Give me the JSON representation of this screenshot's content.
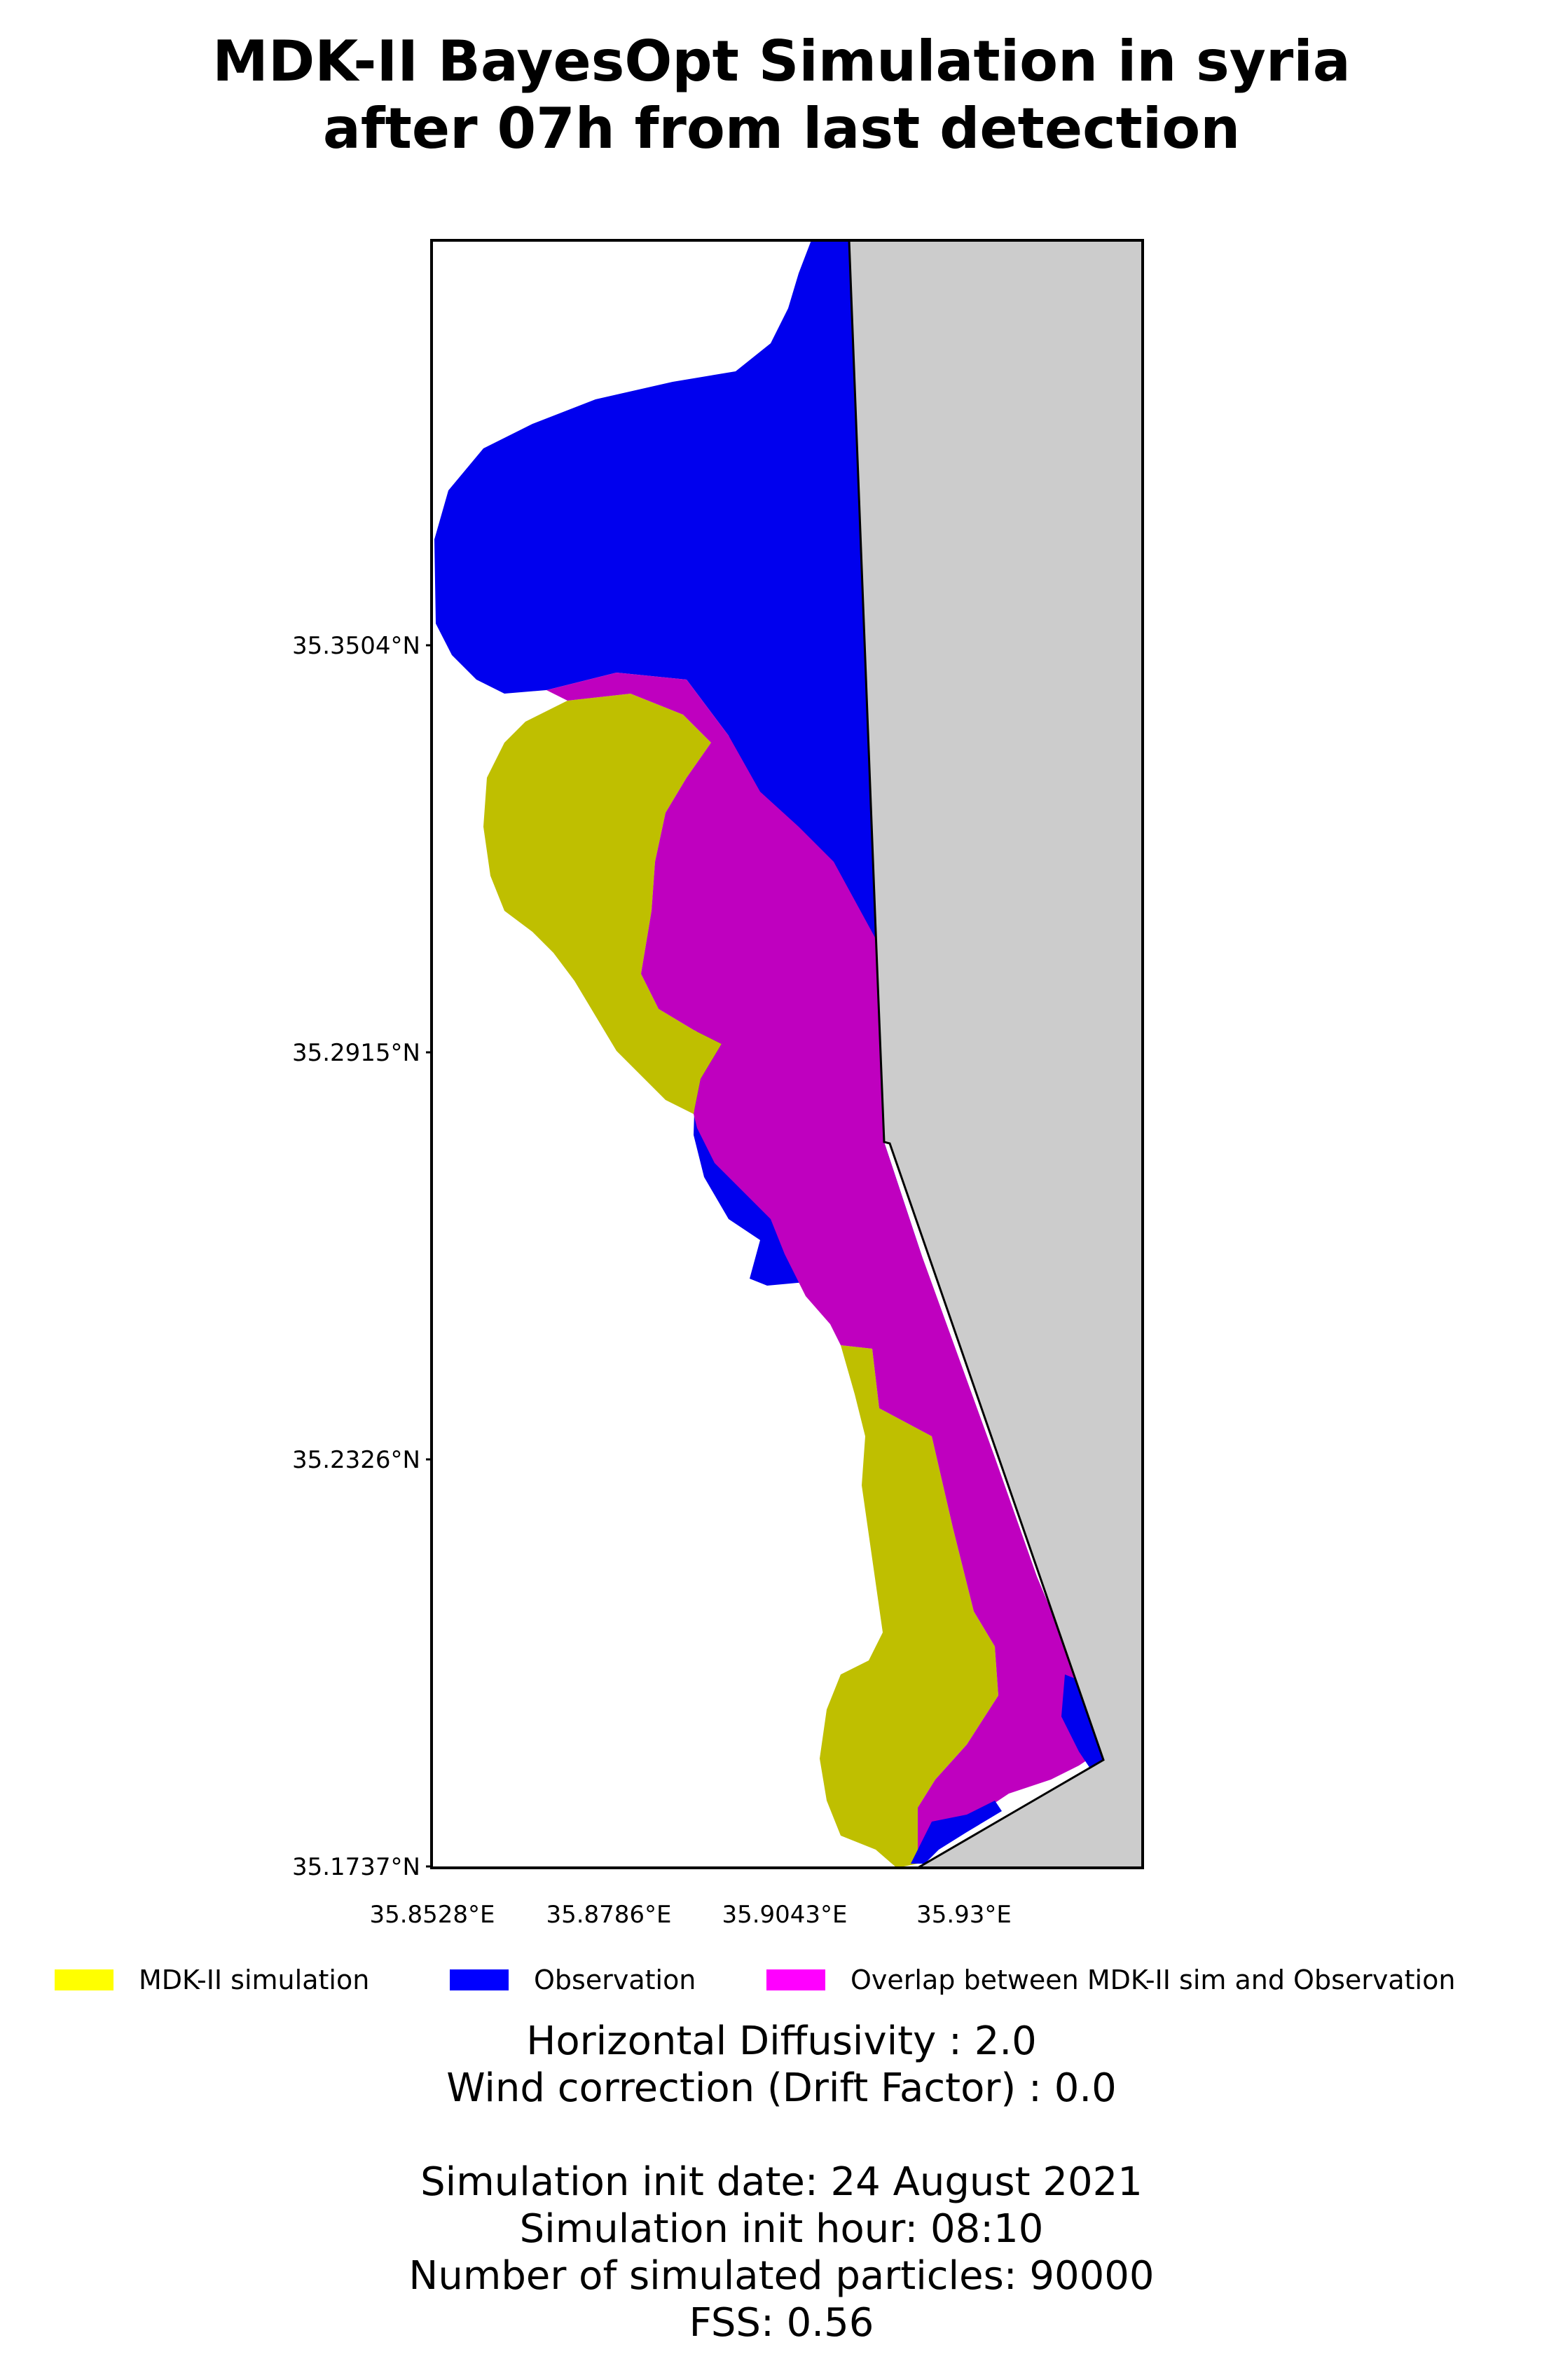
{
  "title": {
    "line1": "MDK-II BayesOpt Simulation in syria",
    "line2": "after 07h from last detection"
  },
  "map": {
    "lat_ticks": [
      "35.3504°N",
      "35.2915°N",
      "35.2326°N",
      "35.1737°N"
    ],
    "lon_ticks": [
      "35.8528°E",
      "35.8786°E",
      "35.9043°E",
      "35.93°E"
    ],
    "lat_range": [
      35.1737,
      35.409
    ],
    "lon_range": [
      35.8395,
      35.9425
    ],
    "land_color": "#cccccc",
    "colors": {
      "simulation": "#bfbf00",
      "observation": "#0000ee",
      "overlap": "#bf00bf"
    }
  },
  "legend": {
    "items": [
      {
        "label": "MDK-II simulation",
        "color": "#ffff00"
      },
      {
        "label": "Observation",
        "color": "#0000ff"
      },
      {
        "label": "Overlap between MDK-II sim and Observation",
        "color": "#ff00ff"
      }
    ]
  },
  "info": {
    "line1": "Horizontal Diffusivity : 2.0",
    "line2": "Wind correction (Drift Factor) : 0.0",
    "line3": "Simulation init date: 24 August 2021",
    "line4": "Simulation init hour: 08:10",
    "line5": "Number of simulated particles: 90000",
    "line6": "FSS: 0.56"
  }
}
